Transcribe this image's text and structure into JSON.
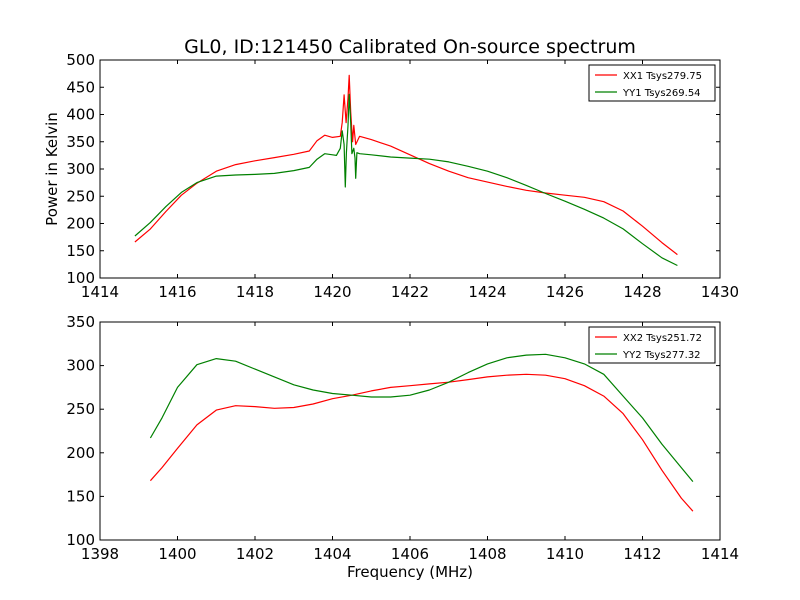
{
  "figure": {
    "title": "GL0, ID:121450 Calibrated On-source spectrum",
    "ylabel": "Power in Kelvin",
    "xlabel": "Frequency (MHz)"
  },
  "chart_data": [
    {
      "type": "line",
      "xlim": [
        1414,
        1430
      ],
      "ylim": [
        100,
        500
      ],
      "xticks": [
        1414,
        1416,
        1418,
        1420,
        1422,
        1424,
        1426,
        1428,
        1430
      ],
      "yticks": [
        100,
        150,
        200,
        250,
        300,
        350,
        400,
        450,
        500
      ],
      "legend": "top-right",
      "grid": false,
      "series": [
        {
          "name": "XX1 Tsys279.75",
          "color": "#ff0000",
          "points": [
            [
              1414.9,
              166
            ],
            [
              1415.3,
              190
            ],
            [
              1415.7,
              222
            ],
            [
              1416.1,
              252
            ],
            [
              1416.5,
              274
            ],
            [
              1417.0,
              296
            ],
            [
              1417.5,
              308
            ],
            [
              1418.0,
              315
            ],
            [
              1418.5,
              321
            ],
            [
              1419.0,
              327
            ],
            [
              1419.4,
              333
            ],
            [
              1419.6,
              352
            ],
            [
              1419.8,
              362
            ],
            [
              1420.0,
              358
            ],
            [
              1420.2,
              360
            ],
            [
              1420.25,
              385
            ],
            [
              1420.3,
              436
            ],
            [
              1420.35,
              385
            ],
            [
              1420.4,
              430
            ],
            [
              1420.43,
              472
            ],
            [
              1420.47,
              405
            ],
            [
              1420.52,
              350
            ],
            [
              1420.55,
              380
            ],
            [
              1420.6,
              345
            ],
            [
              1420.7,
              360
            ],
            [
              1421.0,
              354
            ],
            [
              1421.5,
              342
            ],
            [
              1422.0,
              326
            ],
            [
              1422.5,
              310
            ],
            [
              1423.0,
              296
            ],
            [
              1423.5,
              284
            ],
            [
              1424.0,
              276
            ],
            [
              1424.5,
              268
            ],
            [
              1425.0,
              261
            ],
            [
              1425.5,
              256
            ],
            [
              1426.0,
              252
            ],
            [
              1426.5,
              248
            ],
            [
              1427.0,
              240
            ],
            [
              1427.5,
              223
            ],
            [
              1428.0,
              195
            ],
            [
              1428.5,
              165
            ],
            [
              1428.9,
              143
            ]
          ]
        },
        {
          "name": "YY1 Tsys269.54",
          "color": "#008000",
          "points": [
            [
              1414.9,
              177
            ],
            [
              1415.3,
              202
            ],
            [
              1415.7,
              231
            ],
            [
              1416.1,
              257
            ],
            [
              1416.5,
              275
            ],
            [
              1417.0,
              287
            ],
            [
              1417.5,
              289
            ],
            [
              1418.0,
              290
            ],
            [
              1418.5,
              292
            ],
            [
              1419.0,
              297
            ],
            [
              1419.4,
              303
            ],
            [
              1419.6,
              318
            ],
            [
              1419.8,
              328
            ],
            [
              1420.0,
              326
            ],
            [
              1420.1,
              325
            ],
            [
              1420.2,
              338
            ],
            [
              1420.25,
              370
            ],
            [
              1420.3,
              345
            ],
            [
              1420.33,
              267
            ],
            [
              1420.36,
              330
            ],
            [
              1420.4,
              380
            ],
            [
              1420.43,
              437
            ],
            [
              1420.47,
              385
            ],
            [
              1420.5,
              328
            ],
            [
              1420.55,
              338
            ],
            [
              1420.58,
              320
            ],
            [
              1420.6,
              283
            ],
            [
              1420.63,
              330
            ],
            [
              1420.7,
              328
            ],
            [
              1421.0,
              326
            ],
            [
              1421.5,
              322
            ],
            [
              1422.0,
              320
            ],
            [
              1422.5,
              318
            ],
            [
              1423.0,
              313
            ],
            [
              1423.5,
              305
            ],
            [
              1424.0,
              296
            ],
            [
              1424.5,
              284
            ],
            [
              1425.0,
              270
            ],
            [
              1425.5,
              255
            ],
            [
              1426.0,
              241
            ],
            [
              1426.5,
              226
            ],
            [
              1427.0,
              210
            ],
            [
              1427.5,
              190
            ],
            [
              1428.0,
              163
            ],
            [
              1428.5,
              137
            ],
            [
              1428.9,
              123
            ]
          ]
        }
      ]
    },
    {
      "type": "line",
      "xlim": [
        1398,
        1414
      ],
      "ylim": [
        100,
        350
      ],
      "xticks": [
        1398,
        1400,
        1402,
        1404,
        1406,
        1408,
        1410,
        1412,
        1414
      ],
      "yticks": [
        100,
        150,
        200,
        250,
        300,
        350
      ],
      "legend": "top-right",
      "grid": false,
      "series": [
        {
          "name": "XX2 Tsys251.72",
          "color": "#ff0000",
          "points": [
            [
              1399.3,
              168
            ],
            [
              1399.6,
              183
            ],
            [
              1400.0,
              205
            ],
            [
              1400.5,
              232
            ],
            [
              1401.0,
              249
            ],
            [
              1401.5,
              254
            ],
            [
              1402.0,
              253
            ],
            [
              1402.5,
              251
            ],
            [
              1403.0,
              252
            ],
            [
              1403.5,
              256
            ],
            [
              1404.0,
              262
            ],
            [
              1404.5,
              266
            ],
            [
              1405.0,
              271
            ],
            [
              1405.5,
              275
            ],
            [
              1406.0,
              277
            ],
            [
              1406.5,
              279
            ],
            [
              1407.0,
              281
            ],
            [
              1407.5,
              284
            ],
            [
              1408.0,
              287
            ],
            [
              1408.5,
              289
            ],
            [
              1409.0,
              290
            ],
            [
              1409.5,
              289
            ],
            [
              1410.0,
              285
            ],
            [
              1410.5,
              277
            ],
            [
              1411.0,
              265
            ],
            [
              1411.5,
              245
            ],
            [
              1412.0,
              215
            ],
            [
              1412.5,
              180
            ],
            [
              1413.0,
              148
            ],
            [
              1413.3,
              133
            ]
          ]
        },
        {
          "name": "YY2 Tsys277.32",
          "color": "#008000",
          "points": [
            [
              1399.3,
              217
            ],
            [
              1399.6,
              240
            ],
            [
              1400.0,
              275
            ],
            [
              1400.5,
              301
            ],
            [
              1401.0,
              308
            ],
            [
              1401.5,
              305
            ],
            [
              1402.0,
              296
            ],
            [
              1402.5,
              287
            ],
            [
              1403.0,
              278
            ],
            [
              1403.5,
              272
            ],
            [
              1404.0,
              268
            ],
            [
              1404.5,
              266
            ],
            [
              1405.0,
              264
            ],
            [
              1405.5,
              264
            ],
            [
              1406.0,
              266
            ],
            [
              1406.5,
              272
            ],
            [
              1407.0,
              281
            ],
            [
              1407.5,
              292
            ],
            [
              1408.0,
              302
            ],
            [
              1408.5,
              309
            ],
            [
              1409.0,
              312
            ],
            [
              1409.5,
              313
            ],
            [
              1410.0,
              309
            ],
            [
              1410.5,
              302
            ],
            [
              1411.0,
              290
            ],
            [
              1411.5,
              265
            ],
            [
              1412.0,
              240
            ],
            [
              1412.5,
              210
            ],
            [
              1413.0,
              183
            ],
            [
              1413.3,
              167
            ]
          ]
        }
      ]
    }
  ]
}
